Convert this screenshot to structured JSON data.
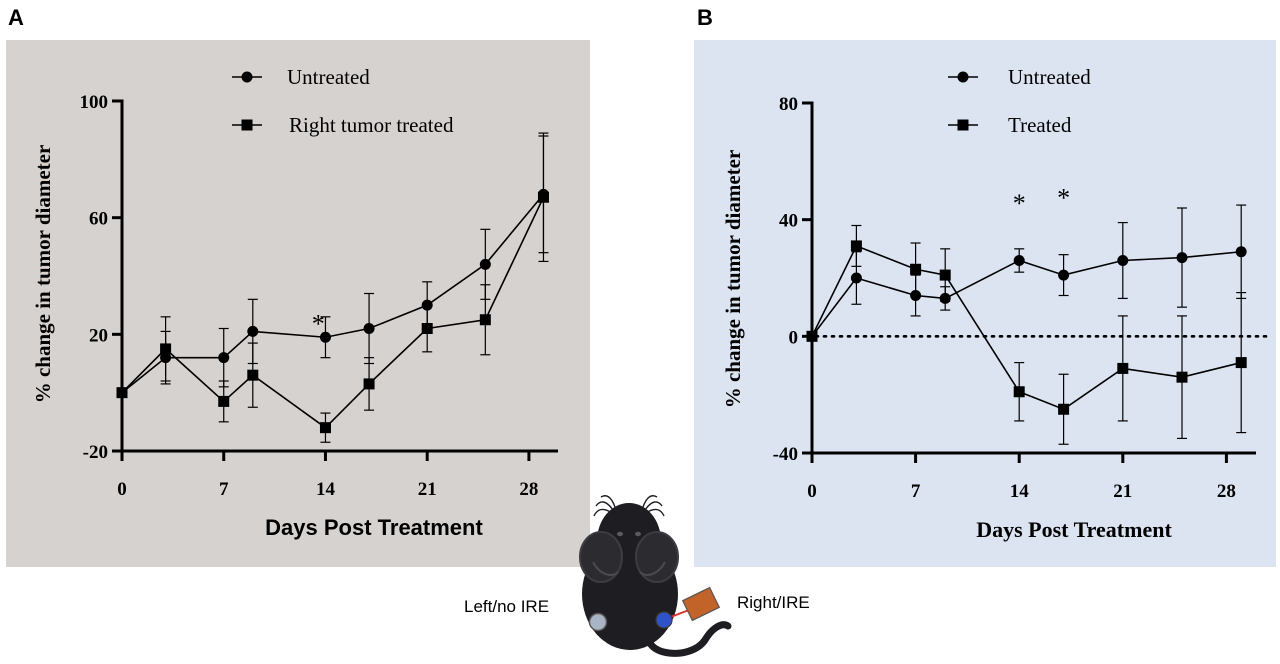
{
  "chart_data": [
    {
      "panel": "A",
      "type": "line",
      "title": "",
      "xlabel": "Days Post Treatment",
      "ylabel": "% change in tumor diameter",
      "xlim": [
        0,
        30
      ],
      "ylim": [
        -20,
        100
      ],
      "xticks": [
        0,
        7,
        14,
        21,
        28
      ],
      "yticks": [
        -20,
        20,
        60,
        100
      ],
      "grid": false,
      "legend_position": "top-center",
      "background": "#d6d2d0",
      "annotations": [
        {
          "text": "*",
          "x": 13.5,
          "y": 24
        }
      ],
      "series": [
        {
          "name": "Untreated",
          "marker": "circle",
          "x": [
            0,
            3,
            7,
            9,
            14,
            17,
            21,
            25,
            29
          ],
          "y": [
            0,
            12,
            12,
            21,
            19,
            22,
            30,
            44,
            68
          ],
          "err": [
            0,
            9,
            10,
            11,
            7,
            12,
            8,
            12,
            20
          ]
        },
        {
          "name": "Right tumor treated",
          "marker": "square",
          "x": [
            0,
            3,
            7,
            9,
            14,
            17,
            21,
            25,
            29
          ],
          "y": [
            0,
            15,
            -3,
            6,
            -12,
            3,
            22,
            25,
            67
          ],
          "err": [
            0,
            11,
            7,
            11,
            5,
            9,
            8,
            12,
            22
          ]
        }
      ]
    },
    {
      "panel": "B",
      "type": "line",
      "title": "",
      "xlabel": "Days Post Treatment",
      "ylabel": "% change in tumor diameter",
      "xlim": [
        0,
        30
      ],
      "ylim": [
        -40,
        80
      ],
      "xticks": [
        0,
        7,
        14,
        21,
        28
      ],
      "yticks": [
        -40,
        0,
        40,
        80
      ],
      "grid": false,
      "zero_line": "dotted",
      "legend_position": "top-center",
      "background": "#dce4f2",
      "annotations": [
        {
          "text": "*",
          "x": 14,
          "y": 46
        },
        {
          "text": "*",
          "x": 17,
          "y": 48
        }
      ],
      "series": [
        {
          "name": "Untreated",
          "marker": "circle",
          "x": [
            0,
            3,
            7,
            9,
            14,
            17,
            21,
            25,
            29
          ],
          "y": [
            0,
            20,
            14,
            13,
            26,
            21,
            26,
            27,
            29
          ],
          "err": [
            0,
            9,
            7,
            4,
            4,
            7,
            13,
            17,
            16
          ]
        },
        {
          "name": "Treated",
          "marker": "square",
          "x": [
            0,
            3,
            7,
            9,
            14,
            17,
            21,
            25,
            29
          ],
          "y": [
            0,
            31,
            23,
            21,
            -19,
            -25,
            -11,
            -14,
            -9
          ],
          "err": [
            0,
            7,
            9,
            9,
            10,
            12,
            18,
            21,
            24
          ]
        }
      ]
    }
  ],
  "mouse_diagram": {
    "left_label": "Left/no IRE",
    "right_label": "Right/IRE",
    "colors": {
      "body": "#1e1e22",
      "left_tumor": "#a9b4c6",
      "right_tumor": "#2f52c9",
      "electrode": "#c2632a",
      "electrode_wire": "#d93030"
    }
  }
}
